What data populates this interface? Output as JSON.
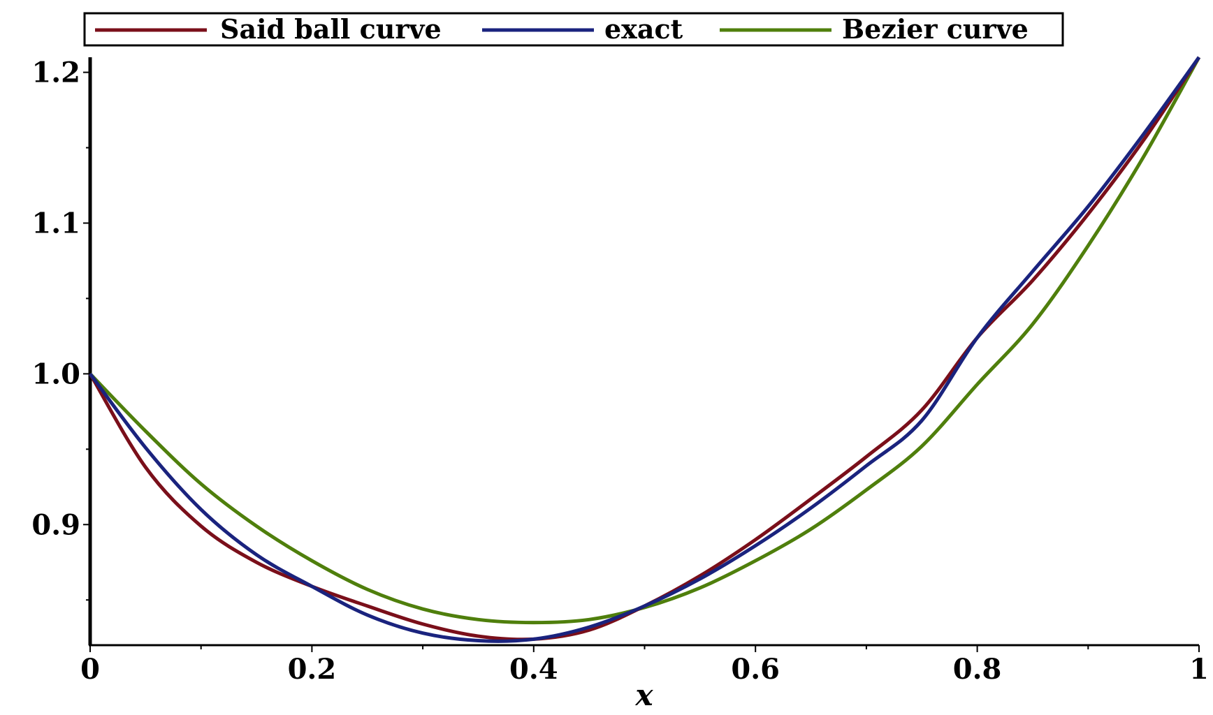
{
  "chart_data": {
    "type": "line",
    "title": "",
    "xlabel": "x",
    "ylabel": "",
    "xlim": [
      0,
      1
    ],
    "ylim": [
      0.82,
      1.21
    ],
    "x_ticks": [
      {
        "value": 0,
        "label": "0"
      },
      {
        "value": 0.2,
        "label": "0.2"
      },
      {
        "value": 0.4,
        "label": "0.4"
      },
      {
        "value": 0.6,
        "label": "0.6"
      },
      {
        "value": 0.8,
        "label": "0.8"
      },
      {
        "value": 1,
        "label": "1"
      }
    ],
    "y_ticks": [
      {
        "value": 0.9,
        "label": "0.9"
      },
      {
        "value": 1.0,
        "label": "1.0"
      },
      {
        "value": 1.1,
        "label": "1.1"
      },
      {
        "value": 1.2,
        "label": "1.2"
      }
    ],
    "grid": false,
    "legend_position": "top",
    "x": [
      0,
      0.05,
      0.1,
      0.15,
      0.2,
      0.25,
      0.3,
      0.35,
      0.4,
      0.45,
      0.5,
      0.55,
      0.6,
      0.65,
      0.7,
      0.75,
      0.8,
      0.85,
      0.9,
      0.95,
      1.0
    ],
    "series": [
      {
        "name": "Said ball curve",
        "color": "#7a0f1a",
        "values": [
          1.0,
          0.938,
          0.899,
          0.875,
          0.859,
          0.846,
          0.834,
          0.826,
          0.824,
          0.83,
          0.846,
          0.866,
          0.89,
          0.917,
          0.945,
          0.976,
          1.024,
          1.062,
          1.106,
          1.155,
          1.21
        ]
      },
      {
        "name": "exact",
        "color": "#1a237e",
        "values": [
          1.0,
          0.951,
          0.91,
          0.88,
          0.859,
          0.84,
          0.828,
          0.823,
          0.824,
          0.832,
          0.846,
          0.864,
          0.886,
          0.911,
          0.939,
          0.969,
          1.024,
          1.068,
          1.111,
          1.159,
          1.21
        ]
      },
      {
        "name": "Bezier curve",
        "color": "#4f7f0c",
        "values": [
          1.0,
          0.962,
          0.927,
          0.899,
          0.876,
          0.857,
          0.844,
          0.837,
          0.835,
          0.837,
          0.845,
          0.858,
          0.876,
          0.897,
          0.923,
          0.952,
          0.993,
          1.033,
          1.085,
          1.144,
          1.21
        ]
      }
    ]
  }
}
